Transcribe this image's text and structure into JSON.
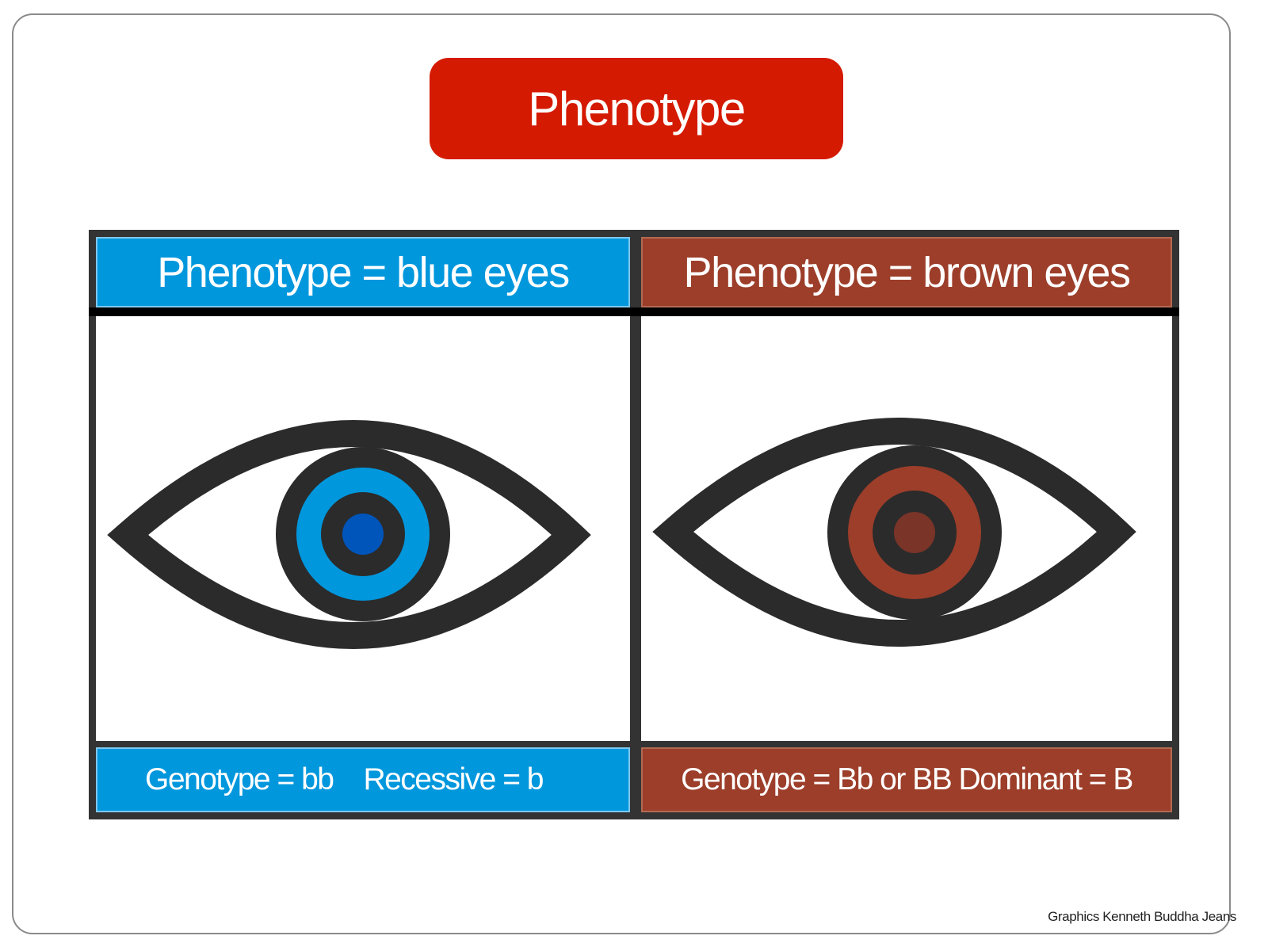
{
  "title": "Phenotype",
  "colors": {
    "title_bg": "#d41a00",
    "blue": "#0097dd",
    "blue_pupil": "#0055bb",
    "brown": "#9c3e2a",
    "brown_pupil": "#7a3428",
    "outline": "#2b2b2b"
  },
  "left_panel": {
    "header": "Phenotype = blue eyes",
    "footer_genotype": "Genotype = bb",
    "footer_allele": "Recessive = b",
    "eye_icon": "blue-eye"
  },
  "right_panel": {
    "header": "Phenotype = brown eyes",
    "footer": "Genotype = Bb or BB Dominant = B",
    "eye_icon": "brown-eye"
  },
  "credit": "Graphics Kenneth Buddha Jeans"
}
